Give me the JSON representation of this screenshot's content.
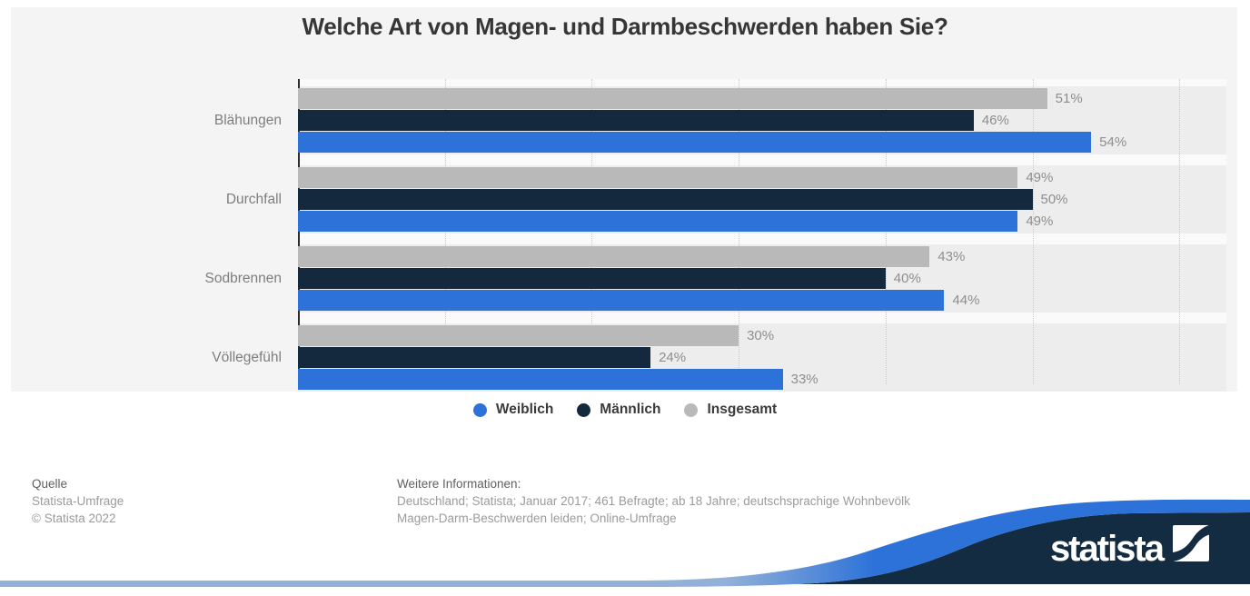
{
  "title": "Welche Art von Magen- und Darmbeschwerden haben Sie?",
  "chart_data": {
    "type": "bar",
    "orientation": "horizontal",
    "title": "Welche Art von Magen- und Darmbeschwerden haben Sie?",
    "categories": [
      "Blähungen",
      "Durchfall",
      "Sodbrennen",
      "Völlegefühl"
    ],
    "series": [
      {
        "name": "Weiblich",
        "color": "#2d72d9",
        "values": [
          54,
          49,
          44,
          33
        ]
      },
      {
        "name": "Männlich",
        "color": "#15293e",
        "values": [
          46,
          50,
          40,
          24
        ]
      },
      {
        "name": "Insgesamt",
        "color": "#b9b9b9",
        "values": [
          51,
          49,
          43,
          30
        ]
      }
    ],
    "row_order_top_to_bottom": [
      "Insgesamt",
      "Männlich",
      "Weiblich"
    ],
    "value_suffix": "%",
    "xlim": [
      0,
      60
    ],
    "gridline_interval": 10,
    "grid": true,
    "legend_position": "bottom"
  },
  "footer": {
    "source_label": "Quelle",
    "source_lines": [
      "Statista-Umfrage",
      "© Statista 2022"
    ],
    "info_label": "Weitere Informationen:",
    "info_lines": [
      "Deutschland; Statista; Januar 2017; 461 Befragte; ab 18 Jahre; deutschsprachige Wohnbevölk",
      "Magen-Darm-Beschwerden leiden; Online-Umfrage"
    ]
  },
  "logo": {
    "text": "statista"
  },
  "colors": {
    "card_background": "#f4f4f4",
    "band": "#ededed",
    "plot_background": "#fafafa",
    "axis": "#2b2b2b",
    "gridline": "#c9c9c9",
    "value_label": "#8e8e8e",
    "category_label": "#7d7d7d",
    "swoosh_blue": "#2d72d9",
    "swoosh_navy": "#132c42",
    "bottom_strip_blue": "#93b1d8"
  }
}
